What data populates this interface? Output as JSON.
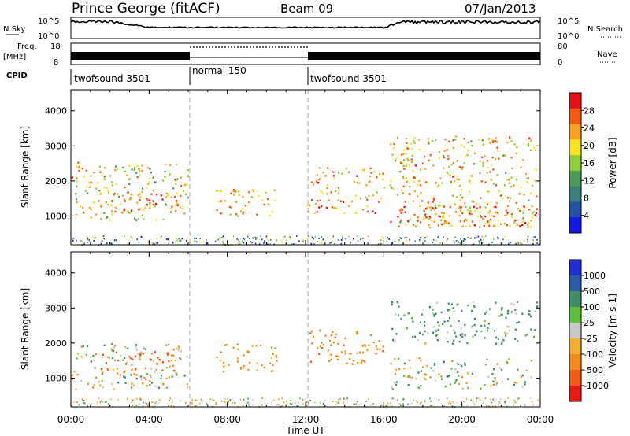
{
  "header": {
    "site": "Prince George (fitACF)",
    "beam": "Beam 09",
    "date": "07/Jan/2013"
  },
  "top_panels": {
    "nsky_label": "N.Sky",
    "nsky_ticks": [
      "10^5",
      "10^0"
    ],
    "nsearch_label": "N.Search",
    "nsearch_ticks": [
      "10^5",
      "10^0"
    ],
    "freq_label": "Freq.",
    "freq_unit": "[MHz]",
    "freq_ticks": [
      "18",
      "8"
    ],
    "nave_label": "Nave",
    "nave_ticks": [
      "80",
      "0"
    ],
    "cpid_label": "CPID",
    "cpid_segments": [
      {
        "label": "twofsound 3501",
        "start_hour": 0,
        "end_hour": 6
      },
      {
        "label": "normal 150",
        "start_hour": 6,
        "end_hour": 12
      },
      {
        "label": "twofsound 3501",
        "start_hour": 12,
        "end_hour": 24
      }
    ]
  },
  "x_axis": {
    "title": "Time UT",
    "ticks": [
      "00:00",
      "04:00",
      "08:00",
      "12:00",
      "16:00",
      "20:00",
      "00:00"
    ],
    "range_hours": [
      0,
      24
    ]
  },
  "colorbars": {
    "power": {
      "title": "Power [dB]",
      "ticks": [
        "28",
        "24",
        "20",
        "16",
        "12",
        "8",
        "4"
      ],
      "colors": [
        "#e8101a",
        "#f35a12",
        "#f6a21c",
        "#f7e21d",
        "#8dcf3a",
        "#4c9a58",
        "#3e7d7a",
        "#2550a8",
        "#1418e6"
      ]
    },
    "velocity": {
      "title": "Velocity [m s-1]",
      "ticks": [
        "1000",
        "500",
        "100",
        "25",
        "-25",
        "-100",
        "-500",
        "-1000"
      ],
      "colors": [
        "#1f2fd4",
        "#2e58a8",
        "#3f8f66",
        "#5fbf3a",
        "#c8c8c8",
        "#f2b030",
        "#f58a1a",
        "#f05a12",
        "#e81a14"
      ]
    }
  },
  "chart_data": [
    {
      "type": "heatmap",
      "panel": "power",
      "ylabel": "Slant Range [km]",
      "xlabel": "",
      "xlim": [
        0,
        24
      ],
      "ylim": [
        180,
        4600
      ],
      "yticks": [
        1000,
        2000,
        3000,
        4000
      ],
      "z_label": "Power [dB]",
      "z_range": [
        0,
        30
      ],
      "scatter_regions": [
        {
          "x_range": [
            0.2,
            6.0
          ],
          "y_range": [
            900,
            2500
          ],
          "power": 18
        },
        {
          "x_range": [
            2.0,
            5.5
          ],
          "y_range": [
            1100,
            1700
          ],
          "power": 26
        },
        {
          "x_range": [
            0.0,
            0.6
          ],
          "y_range": [
            2000,
            2600
          ],
          "power": 24
        },
        {
          "x_range": [
            7.4,
            10.5
          ],
          "y_range": [
            1000,
            1800
          ],
          "power": 20
        },
        {
          "x_range": [
            12.0,
            16.0
          ],
          "y_range": [
            1100,
            2400
          ],
          "power": 22
        },
        {
          "x_range": [
            16.3,
            23.8
          ],
          "y_range": [
            700,
            3300
          ],
          "power": 20
        },
        {
          "x_range": [
            16.3,
            23.8
          ],
          "y_range": [
            700,
            1300
          ],
          "power": 26
        }
      ]
    },
    {
      "type": "heatmap",
      "panel": "velocity",
      "ylabel": "Slant Range [km]",
      "xlabel": "Time UT",
      "xlim": [
        0,
        24
      ],
      "ylim": [
        180,
        4600
      ],
      "yticks": [
        1000,
        2000,
        3000,
        4000
      ],
      "z_label": "Velocity [m s-1]",
      "z_range": [
        -1000,
        1000
      ],
      "scatter_regions": [
        {
          "x_range": [
            0.0,
            6.0
          ],
          "y_range": [
            700,
            2000
          ],
          "velocity": 0
        },
        {
          "x_range": [
            1.5,
            5.5
          ],
          "y_range": [
            1100,
            1800
          ],
          "velocity": -300
        },
        {
          "x_range": [
            7.4,
            10.5
          ],
          "y_range": [
            1200,
            2000
          ],
          "velocity": -150
        },
        {
          "x_range": [
            12.0,
            16.0
          ],
          "y_range": [
            1400,
            2400
          ],
          "velocity": -200
        },
        {
          "x_range": [
            16.3,
            23.8
          ],
          "y_range": [
            700,
            1600
          ],
          "velocity": 0
        },
        {
          "x_range": [
            16.3,
            23.8
          ],
          "y_range": [
            2000,
            3200
          ],
          "velocity": 100
        }
      ]
    }
  ]
}
